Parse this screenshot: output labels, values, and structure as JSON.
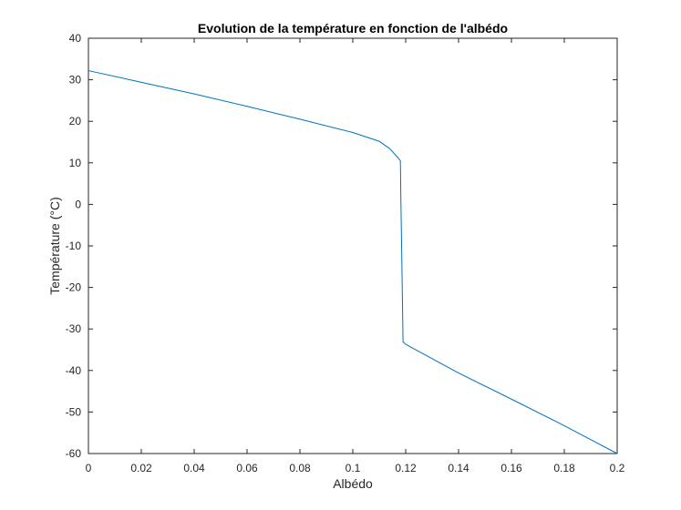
{
  "chart_data": {
    "type": "line",
    "title": "Evolution de la température en fonction de l'albédo",
    "xlabel": "Albédo",
    "ylabel": "Température (°C)",
    "xlim": [
      0,
      0.2
    ],
    "ylim": [
      -60,
      40
    ],
    "xticks": [
      0,
      0.02,
      0.04,
      0.06,
      0.08,
      0.1,
      0.12,
      0.14,
      0.16,
      0.18,
      0.2
    ],
    "xtick_labels": [
      "0",
      "0.02",
      "0.04",
      "0.06",
      "0.08",
      "0.1",
      "0.12",
      "0.14",
      "0.16",
      "0.18",
      "0.2"
    ],
    "yticks": [
      40,
      30,
      20,
      10,
      0,
      -10,
      -20,
      -30,
      -40,
      -50,
      -60
    ],
    "ytick_labels": [
      "40",
      "30",
      "20",
      "10",
      "0",
      "-10",
      "-20",
      "-30",
      "-40",
      "-50",
      "-60"
    ],
    "grid": false,
    "box": true,
    "series": [
      {
        "color": "#0072BD",
        "x": [
          0,
          0.02,
          0.04,
          0.06,
          0.08,
          0.1,
          0.11,
          0.114,
          0.117,
          0.118,
          0.1182,
          0.1185,
          0.119,
          0.12,
          0.14,
          0.16,
          0.18,
          0.2
        ],
        "y": [
          32.2,
          29.4,
          26.6,
          23.6,
          20.5,
          17.3,
          15.2,
          13.4,
          11.3,
          10.5,
          0.3,
          -11.5,
          -33.1,
          -33.7,
          -40.6,
          -46.9,
          -53.3,
          -60.0
        ]
      }
    ]
  }
}
